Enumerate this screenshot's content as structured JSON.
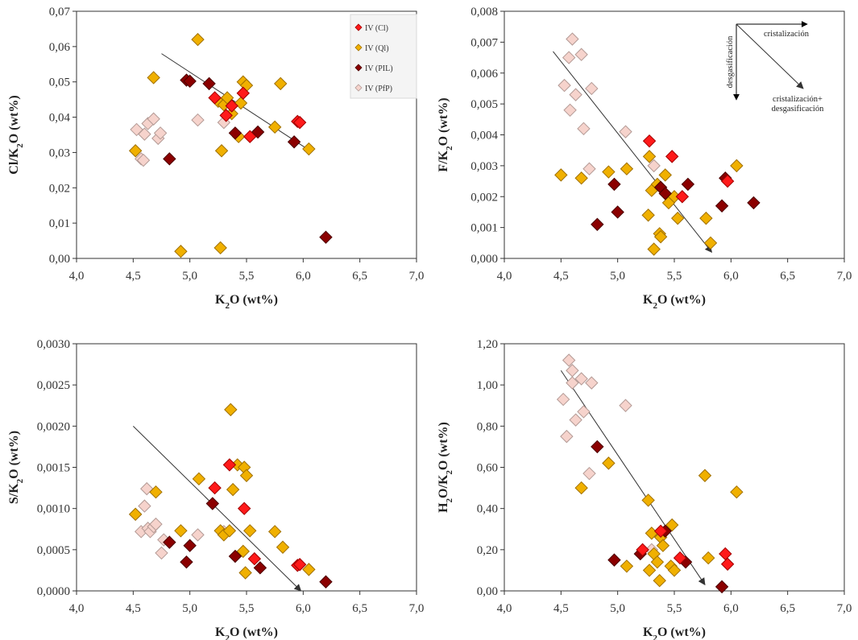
{
  "series": [
    {
      "name": "IV (Cl)",
      "fill": "#ff1a1a",
      "stroke": "#a00000"
    },
    {
      "name": "IV (Ql)",
      "fill": "#f0b000",
      "stroke": "#a07000"
    },
    {
      "name": "IV (PIL)",
      "fill": "#8b0000",
      "stroke": "#4a0000"
    },
    {
      "name": "IV (PfP)",
      "fill": "#f6d3cc",
      "stroke": "#b39a95"
    }
  ],
  "chart_data": [
    {
      "type": "scatter",
      "xlabel": "K2O (wt%)",
      "ylabel": "Cl/K2O (wt%)",
      "xlim": [
        4.0,
        7.0
      ],
      "ylim": [
        0,
        0.07
      ],
      "xticks": [
        "4,0",
        "4,5",
        "5,0",
        "5,5",
        "6,0",
        "6,5",
        "7,0"
      ],
      "yticks": [
        "0,00",
        "0,01",
        "0,02",
        "0,03",
        "0,04",
        "0,05",
        "0,06",
        "0,07"
      ],
      "legend": "top-right",
      "arrow": {
        "from": [
          4.75,
          0.058
        ],
        "to": [
          6.07,
          0.0303
        ]
      },
      "points": {
        "IV (Cl)": [
          [
            5.22,
            0.0455
          ],
          [
            5.32,
            0.0405
          ],
          [
            5.37,
            0.0432
          ],
          [
            5.47,
            0.0468
          ],
          [
            5.53,
            0.0345
          ],
          [
            5.95,
            0.0388
          ],
          [
            5.97,
            0.0385
          ]
        ],
        "IV (Ql)": [
          [
            4.52,
            0.0305
          ],
          [
            4.68,
            0.0512
          ],
          [
            4.92,
            0.002
          ],
          [
            5.07,
            0.062
          ],
          [
            5.25,
            0.0445
          ],
          [
            5.27,
            0.003
          ],
          [
            5.28,
            0.0305
          ],
          [
            5.3,
            0.0435
          ],
          [
            5.33,
            0.0455
          ],
          [
            5.37,
            0.041
          ],
          [
            5.43,
            0.0345
          ],
          [
            5.45,
            0.044
          ],
          [
            5.47,
            0.05
          ],
          [
            5.5,
            0.049
          ],
          [
            5.75,
            0.0372
          ],
          [
            5.8,
            0.0495
          ],
          [
            6.05,
            0.031
          ]
        ],
        "IV (PIL)": [
          [
            4.82,
            0.0282
          ],
          [
            4.97,
            0.0505
          ],
          [
            5.0,
            0.0502
          ],
          [
            5.17,
            0.0495
          ],
          [
            5.4,
            0.0355
          ],
          [
            5.6,
            0.0358
          ],
          [
            5.92,
            0.033
          ],
          [
            6.2,
            0.006
          ]
        ],
        "IV (PfP)": [
          [
            4.53,
            0.0365
          ],
          [
            4.57,
            0.0282
          ],
          [
            4.59,
            0.0278
          ],
          [
            4.6,
            0.0352
          ],
          [
            4.63,
            0.0382
          ],
          [
            4.68,
            0.0395
          ],
          [
            4.72,
            0.034
          ],
          [
            4.74,
            0.0355
          ],
          [
            5.07,
            0.0392
          ],
          [
            5.3,
            0.0385
          ]
        ]
      }
    },
    {
      "type": "scatter",
      "xlabel": "K2O (wt%)",
      "ylabel": "F/K2O (wt%)",
      "xlim": [
        4.0,
        7.0
      ],
      "ylim": [
        0,
        0.008
      ],
      "xticks": [
        "4,0",
        "4,5",
        "5,0",
        "5,5",
        "6,0",
        "6,5",
        "7,0"
      ],
      "yticks": [
        "0,000",
        "0,001",
        "0,002",
        "0,003",
        "0,004",
        "0,005",
        "0,006",
        "0,007",
        "0,008"
      ],
      "arrow": {
        "from": [
          4.43,
          0.0067
        ],
        "to": [
          5.83,
          0.0002
        ]
      },
      "annotations": [
        "cristalización",
        "desgasificación",
        "cristalización+",
        "desgasificación"
      ],
      "points": {
        "IV (Cl)": [
          [
            5.28,
            0.0038
          ],
          [
            5.48,
            0.0033
          ],
          [
            5.57,
            0.002
          ],
          [
            5.97,
            0.0025
          ]
        ],
        "IV (Ql)": [
          [
            4.5,
            0.0027
          ],
          [
            4.68,
            0.0026
          ],
          [
            4.92,
            0.0028
          ],
          [
            5.08,
            0.0029
          ],
          [
            5.27,
            0.0014
          ],
          [
            5.28,
            0.0033
          ],
          [
            5.3,
            0.0022
          ],
          [
            5.32,
            0.0003
          ],
          [
            5.35,
            0.0024
          ],
          [
            5.37,
            0.0008
          ],
          [
            5.38,
            0.0007
          ],
          [
            5.42,
            0.0027
          ],
          [
            5.45,
            0.0018
          ],
          [
            5.5,
            0.002
          ],
          [
            5.53,
            0.0013
          ],
          [
            5.78,
            0.0013
          ],
          [
            5.82,
            0.0005
          ],
          [
            6.05,
            0.003
          ]
        ],
        "IV (PIL)": [
          [
            4.82,
            0.0011
          ],
          [
            4.97,
            0.0024
          ],
          [
            5.0,
            0.0015
          ],
          [
            5.38,
            0.0023
          ],
          [
            5.42,
            0.0021
          ],
          [
            5.62,
            0.0024
          ],
          [
            5.92,
            0.0017
          ],
          [
            5.95,
            0.0026
          ],
          [
            6.2,
            0.0018
          ]
        ],
        "IV (PfP)": [
          [
            4.53,
            0.0056
          ],
          [
            4.57,
            0.0065
          ],
          [
            4.6,
            0.0071
          ],
          [
            4.63,
            0.0053
          ],
          [
            4.58,
            0.0048
          ],
          [
            4.68,
            0.0066
          ],
          [
            4.7,
            0.0042
          ],
          [
            4.75,
            0.0029
          ],
          [
            4.77,
            0.0055
          ],
          [
            5.07,
            0.0041
          ],
          [
            5.32,
            0.003
          ]
        ]
      }
    },
    {
      "type": "scatter",
      "xlabel": "K2O (wt%)",
      "ylabel": "S/K2O (wt%)",
      "xlim": [
        4.0,
        7.0
      ],
      "ylim": [
        0,
        0.003
      ],
      "xticks": [
        "4,0",
        "4,5",
        "5,0",
        "5,5",
        "6,0",
        "6,5",
        "7,0"
      ],
      "yticks": [
        "0,0000",
        "0,0005",
        "0,0010",
        "0,0015",
        "0,0020",
        "0,0025",
        "0,0030"
      ],
      "arrow": {
        "from": [
          4.5,
          0.002
        ],
        "to": [
          5.98,
          0.0
        ]
      },
      "points": {
        "IV (Cl)": [
          [
            5.22,
            0.00125
          ],
          [
            5.35,
            0.00153
          ],
          [
            5.48,
            0.001
          ],
          [
            5.57,
            0.00039
          ],
          [
            5.95,
            0.00031
          ],
          [
            5.97,
            0.00032
          ]
        ],
        "IV (Ql)": [
          [
            4.52,
            0.00093
          ],
          [
            4.7,
            0.0012
          ],
          [
            4.92,
            0.00073
          ],
          [
            5.08,
            0.00136
          ],
          [
            5.27,
            0.00073
          ],
          [
            5.3,
            0.00068
          ],
          [
            5.35,
            0.00073
          ],
          [
            5.36,
            0.0022
          ],
          [
            5.38,
            0.00123
          ],
          [
            5.42,
            0.00153
          ],
          [
            5.47,
            0.00048
          ],
          [
            5.48,
            0.0015
          ],
          [
            5.49,
            0.00022
          ],
          [
            5.5,
            0.0014
          ],
          [
            5.53,
            0.00073
          ],
          [
            5.75,
            0.00072
          ],
          [
            5.82,
            0.00053
          ],
          [
            6.05,
            0.00026
          ]
        ],
        "IV (PIL)": [
          [
            4.82,
            0.00059
          ],
          [
            4.97,
            0.00035
          ],
          [
            5.0,
            0.00055
          ],
          [
            5.2,
            0.00106
          ],
          [
            5.4,
            0.00042
          ],
          [
            5.62,
            0.00028
          ],
          [
            6.2,
            0.00011
          ]
        ],
        "IV (PfP)": [
          [
            4.52,
            0.00093
          ],
          [
            4.57,
            0.00072
          ],
          [
            4.6,
            0.00103
          ],
          [
            4.62,
            0.00124
          ],
          [
            4.63,
            0.00076
          ],
          [
            4.65,
            0.00072
          ],
          [
            4.68,
            0.00078
          ],
          [
            4.7,
            0.00081
          ],
          [
            4.75,
            0.00046
          ],
          [
            4.77,
            0.00062
          ],
          [
            5.07,
            0.00068
          ],
          [
            5.3,
            0.00072
          ]
        ]
      }
    },
    {
      "type": "scatter",
      "xlabel": "K2O (wt%)",
      "ylabel": "H2O/K2O (wt%)",
      "xlim": [
        4.0,
        7.0
      ],
      "ylim": [
        0,
        1.2
      ],
      "xticks": [
        "4,0",
        "4,5",
        "5,0",
        "5,5",
        "6,0",
        "6,5",
        "7,0"
      ],
      "yticks": [
        "0,00",
        "0,20",
        "0,40",
        "0,60",
        "0,80",
        "1,00",
        "1,20"
      ],
      "arrow": {
        "from": [
          4.5,
          1.07
        ],
        "to": [
          5.77,
          0.03
        ]
      },
      "points": {
        "IV (Cl)": [
          [
            5.22,
            0.2
          ],
          [
            5.38,
            0.29
          ],
          [
            5.55,
            0.16
          ],
          [
            5.95,
            0.18
          ],
          [
            5.97,
            0.13
          ]
        ],
        "IV (Ql)": [
          [
            4.68,
            0.5
          ],
          [
            4.92,
            0.62
          ],
          [
            5.08,
            0.12
          ],
          [
            5.27,
            0.44
          ],
          [
            5.28,
            0.1
          ],
          [
            5.3,
            0.28
          ],
          [
            5.32,
            0.18
          ],
          [
            5.35,
            0.14
          ],
          [
            5.37,
            0.05
          ],
          [
            5.38,
            0.26
          ],
          [
            5.4,
            0.22
          ],
          [
            5.47,
            0.12
          ],
          [
            5.48,
            0.32
          ],
          [
            5.5,
            0.1
          ],
          [
            5.77,
            0.56
          ],
          [
            5.8,
            0.16
          ],
          [
            6.05,
            0.48
          ]
        ],
        "IV (PIL)": [
          [
            4.82,
            0.7
          ],
          [
            4.97,
            0.15
          ],
          [
            5.2,
            0.18
          ],
          [
            5.42,
            0.29
          ],
          [
            5.6,
            0.14
          ],
          [
            5.92,
            0.02
          ]
        ],
        "IV (PfP)": [
          [
            4.52,
            0.93
          ],
          [
            4.55,
            0.75
          ],
          [
            4.57,
            1.12
          ],
          [
            4.6,
            1.07
          ],
          [
            4.6,
            1.01
          ],
          [
            4.63,
            0.83
          ],
          [
            4.68,
            1.03
          ],
          [
            4.7,
            0.87
          ],
          [
            4.75,
            0.57
          ],
          [
            4.77,
            1.01
          ],
          [
            5.07,
            0.9
          ],
          [
            5.3,
            0.2
          ]
        ]
      }
    }
  ]
}
